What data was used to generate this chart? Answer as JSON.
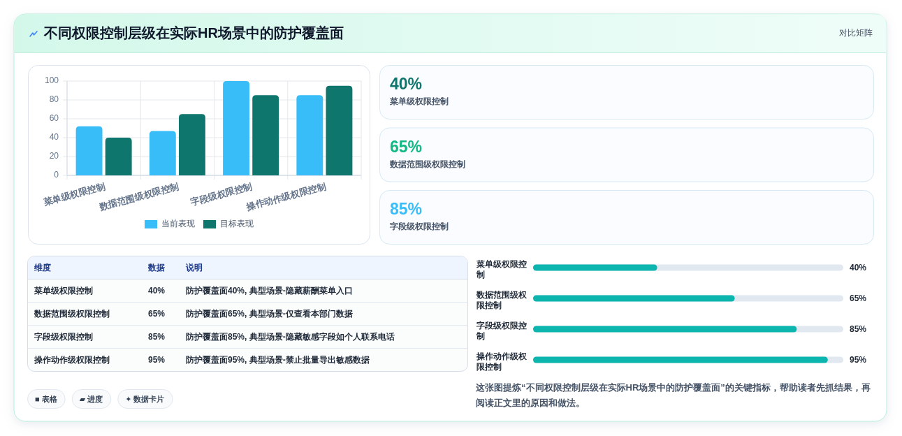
{
  "chart_data": [
    {
      "type": "bar",
      "title": "不同权限控制层级在实际HR场景中的防护覆盖面",
      "categories": [
        "菜单级权限控制",
        "数据范围级权限控制",
        "字段级权限控制",
        "操作动作级权限控制"
      ],
      "series": [
        {
          "name": "当前表现",
          "color": "#38bdf8",
          "values": [
            52,
            47,
            100,
            85
          ]
        },
        {
          "name": "目标表现",
          "color": "#0f766e",
          "values": [
            40,
            65,
            85,
            95
          ]
        }
      ],
      "ylim": [
        0,
        100
      ],
      "yticks": [
        0,
        20,
        40,
        60,
        80,
        100
      ],
      "grid": true,
      "legend": "bottom"
    },
    {
      "type": "other",
      "subtitle": "对比矩阵",
      "categories": [
        "菜单级权限控制",
        "数据范围级权限控制",
        "字段级权限控制"
      ],
      "values": [
        40,
        65,
        85
      ],
      "value_labels": [
        "40%",
        "65%",
        "85%"
      ]
    },
    {
      "type": "other",
      "categories": [
        "菜单级权限控制",
        "数据范围级权限控制",
        "字段级权限控制",
        "操作动作级权限控制"
      ],
      "values": [
        40,
        65,
        85,
        95
      ],
      "value_labels": [
        "40%",
        "65%",
        "85%",
        "95%"
      ],
      "annotations": [
        "维度",
        "数据",
        "说明",
        "防护覆盖面40%, 典型场景-隐藏薪酬菜单入口",
        "防护覆盖面65%, 典型场景-仅查看本部门数据",
        "防护覆盖面85%, 典型场景-隐藏敏感字段如个人联系电话",
        "防护覆盖面95%, 典型场景-禁止批量导出敏感数据",
        "■ 表格",
        "▰ 进度",
        "✦ 数据卡片"
      ]
    },
    {
      "type": "bar",
      "orientation": "horizontal",
      "categories": [
        "菜单级权限控制",
        "数据范围级权限控制",
        "字段级权限控制",
        "操作动作级权限控制"
      ],
      "values": [
        40,
        65,
        85,
        95
      ],
      "value_labels": [
        "40%",
        "65%",
        "85%",
        "95%"
      ],
      "color": "#0cb5ad",
      "xlim": [
        0,
        100
      ],
      "tick_labels": "y",
      "annotations": [
        "这张图提炼“不同权限控制层级在实际HR场景中的防护覆盖面”的关键指标，帮助读者先抓结果，再阅读正文里的原因和做法。"
      ]
    }
  ]
}
